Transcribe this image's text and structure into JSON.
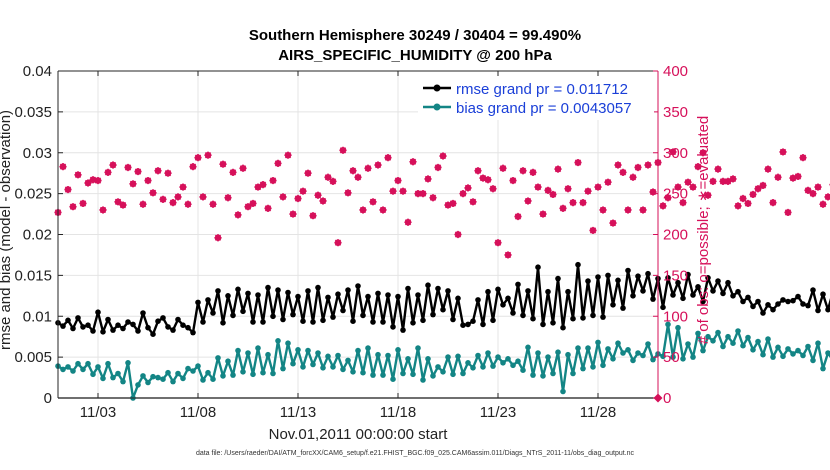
{
  "chart_data": {
    "type": "line",
    "title": "Southern Hemisphere 30249 / 30404 = 99.490%",
    "subtitle": "AIRS_SPECIFIC_HUMIDITY @ 200 hPa",
    "xlabel": "Nov.01,2011 00:00:00 start",
    "ylabel_left": "rmse and bias (model - observation)",
    "ylabel_right": "# of obs: o=possible; ∗=evaluated",
    "xlim": [
      1,
      31
    ],
    "ylim_left": [
      0,
      0.04
    ],
    "ylim_right": [
      0,
      400
    ],
    "x_ticks": [
      3,
      8,
      13,
      18,
      23,
      28
    ],
    "x_tick_labels": [
      "11/03",
      "11/08",
      "11/13",
      "11/18",
      "11/23",
      "11/28"
    ],
    "y_ticks_left": [
      0,
      0.005,
      0.01,
      0.015,
      0.02,
      0.025,
      0.03,
      0.035,
      0.04
    ],
    "y_tick_labels_left": [
      "0",
      "0.005",
      "0.01",
      "0.015",
      "0.02",
      "0.025",
      "0.03",
      "0.035",
      "0.04"
    ],
    "y_ticks_right": [
      0,
      50,
      100,
      150,
      200,
      250,
      300,
      350,
      400
    ],
    "y_tick_labels_right": [
      "0",
      "50",
      "100",
      "150",
      "200",
      "250",
      "300",
      "350",
      "400"
    ],
    "legend_position": "top-right",
    "colors": {
      "rmse": "#000000",
      "bias": "#138585",
      "obs": "#d6105a",
      "axis_right": "#d6105a"
    },
    "footnote": "data file: /Users/raeder/DAI/ATM_forcXX/CAM6_setup/f.e21.FHIST_BGC.f09_025.CAM6assim.011/Diags_NTrS_2011-11/obs_diag_output.nc",
    "series": [
      {
        "name": "rmse grand pr = 0.011712",
        "axis": "left",
        "x_start": 1,
        "x_step": 0.25,
        "values": [
          0.0092,
          0.0088,
          0.0095,
          0.0085,
          0.0098,
          0.0087,
          0.0089,
          0.0082,
          0.0105,
          0.0081,
          0.0096,
          0.0083,
          0.0089,
          0.0085,
          0.0093,
          0.009,
          0.0082,
          0.0104,
          0.0086,
          0.0078,
          0.0094,
          0.0098,
          0.0087,
          0.0083,
          0.0096,
          0.0089,
          0.0086,
          0.008,
          0.0117,
          0.0093,
          0.012,
          0.0104,
          0.0131,
          0.0092,
          0.0125,
          0.0101,
          0.0133,
          0.0106,
          0.0128,
          0.0093,
          0.0126,
          0.0093,
          0.0135,
          0.01,
          0.0132,
          0.0096,
          0.0129,
          0.0102,
          0.0124,
          0.0094,
          0.0131,
          0.0093,
          0.0135,
          0.0095,
          0.0123,
          0.0099,
          0.0127,
          0.0107,
          0.0132,
          0.0094,
          0.0137,
          0.0101,
          0.0124,
          0.0093,
          0.0128,
          0.0093,
          0.0126,
          0.0087,
          0.0124,
          0.0083,
          0.0134,
          0.0092,
          0.0126,
          0.0095,
          0.0138,
          0.0102,
          0.0134,
          0.0108,
          0.0131,
          0.0096,
          0.0122,
          0.0089,
          0.009,
          0.0094,
          0.012,
          0.009,
          0.013,
          0.0095,
          0.0133,
          0.0114,
          0.0122,
          0.0104,
          0.0139,
          0.0101,
          0.0131,
          0.0097,
          0.016,
          0.009,
          0.013,
          0.0092,
          0.0146,
          0.0086,
          0.013,
          0.0097,
          0.0163,
          0.0098,
          0.0143,
          0.0101,
          0.0148,
          0.0099,
          0.015,
          0.0114,
          0.0144,
          0.011,
          0.0156,
          0.0125,
          0.0149,
          0.0131,
          0.0152,
          0.0121,
          0.0146,
          0.0111,
          0.0147,
          0.0126,
          0.0141,
          0.0122,
          0.0151,
          0.0126,
          0.0136,
          0.0118,
          0.0147,
          0.0131,
          0.0143,
          0.0128,
          0.0141,
          0.0125,
          0.013,
          0.0118,
          0.0123,
          0.0112,
          0.0118,
          0.0104,
          0.0114,
          0.0108,
          0.0115,
          0.012,
          0.0118,
          0.0119,
          0.0124,
          0.0115,
          0.0113,
          0.0132,
          0.0107,
          0.0127,
          0.0108,
          0.013,
          0.0114,
          0.0125,
          0.0123,
          0.0124,
          0.0119,
          0.0143
        ]
      },
      {
        "name": "bias grand pr = 0.0043057",
        "axis": "left",
        "x_start": 1,
        "x_step": 0.25,
        "values": [
          0.0039,
          0.0035,
          0.0038,
          0.0033,
          0.0042,
          0.0035,
          0.0042,
          0.0029,
          0.0038,
          0.0024,
          0.0042,
          0.0025,
          0.003,
          0.002,
          0.0043,
          0.0,
          0.0016,
          0.0027,
          0.0019,
          0.0026,
          0.0025,
          0.0023,
          0.0031,
          0.002,
          0.003,
          0.0024,
          0.0036,
          0.0033,
          0.0039,
          0.0022,
          0.0031,
          0.0023,
          0.0049,
          0.0027,
          0.0045,
          0.0028,
          0.0058,
          0.0032,
          0.0055,
          0.0029,
          0.0061,
          0.0031,
          0.0053,
          0.003,
          0.007,
          0.0036,
          0.0067,
          0.0042,
          0.0059,
          0.0038,
          0.0058,
          0.0041,
          0.0055,
          0.0037,
          0.0051,
          0.0038,
          0.0052,
          0.0035,
          0.0046,
          0.0032,
          0.0058,
          0.0031,
          0.0061,
          0.0028,
          0.0053,
          0.0028,
          0.0052,
          0.0023,
          0.0059,
          0.003,
          0.0048,
          0.0029,
          0.0061,
          0.0022,
          0.0048,
          0.0027,
          0.0038,
          0.0032,
          0.005,
          0.0029,
          0.0051,
          0.003,
          0.0043,
          0.0037,
          0.0052,
          0.0038,
          0.0055,
          0.0039,
          0.005,
          0.0043,
          0.0048,
          0.004,
          0.0045,
          0.0034,
          0.0062,
          0.0028,
          0.0055,
          0.0027,
          0.005,
          0.003,
          0.0056,
          0.0008,
          0.0053,
          0.003,
          0.0061,
          0.0036,
          0.0061,
          0.0038,
          0.0068,
          0.004,
          0.006,
          0.0048,
          0.0067,
          0.0055,
          0.0059,
          0.0046,
          0.0055,
          0.0052,
          0.0066,
          0.0047,
          0.0054,
          0.0051,
          0.009,
          0.005,
          0.0086,
          0.0048,
          0.0066,
          0.005,
          0.0079,
          0.0058,
          0.0075,
          0.007,
          0.008,
          0.0063,
          0.0075,
          0.0067,
          0.0082,
          0.0064,
          0.0074,
          0.0059,
          0.0069,
          0.0053,
          0.0072,
          0.005,
          0.0062,
          0.0051,
          0.006,
          0.0054,
          0.0058,
          0.0052,
          0.0063,
          0.0046,
          0.0067,
          0.0036,
          0.0055,
          0.0046,
          0.005,
          0.0043,
          0.0061,
          0.005,
          0.0058,
          0.0042,
          0.0051,
          0.005
        ]
      },
      {
        "name": "# of obs (possible and evaluated)",
        "axis": "right",
        "x_start": 1,
        "x_step": 0.25,
        "values": [
          227,
          283,
          255,
          234,
          273,
          238,
          263,
          267,
          266,
          230,
          276,
          285,
          240,
          236,
          282,
          262,
          277,
          237,
          266,
          251,
          278,
          243,
          275,
          239,
          246,
          258,
          237,
          283,
          294,
          246,
          297,
          237,
          196,
          286,
          245,
          276,
          224,
          281,
          234,
          238,
          258,
          261,
          232,
          266,
          287,
          246,
          297,
          225,
          244,
          253,
          275,
          223,
          248,
          241,
          270,
          265,
          190,
          303,
          251,
          278,
          270,
          230,
          281,
          240,
          285,
          230,
          294,
          253,
          266,
          253,
          215,
          289,
          250,
          250,
          268,
          245,
          282,
          296,
          236,
          238,
          200,
          250,
          257,
          240,
          278,
          269,
          267,
          256,
          190,
          281,
          175,
          266,
          222,
          278,
          241,
          276,
          258,
          225,
          254,
          249,
          280,
          232,
          256,
          239,
          288,
          239,
          253,
          205,
          258,
          230,
          264,
          214,
          285,
          276,
          230,
          270,
          282,
          230,
          285,
          252,
          288,
          235,
          245,
          301,
          258,
          239,
          264,
          258,
          283,
          300,
          248,
          265,
          280,
          265,
          265,
          268,
          235,
          244,
          238,
          249,
          256,
          260,
          280,
          239,
          270,
          301,
          227,
          269,
          271,
          294,
          254,
          250,
          258,
          237,
          246,
          261,
          241,
          252,
          269,
          306,
          256,
          248,
          271,
          251,
          268,
          237
        ]
      }
    ],
    "extra_marker": {
      "axis": "right",
      "x": 31,
      "value": 0
    }
  }
}
